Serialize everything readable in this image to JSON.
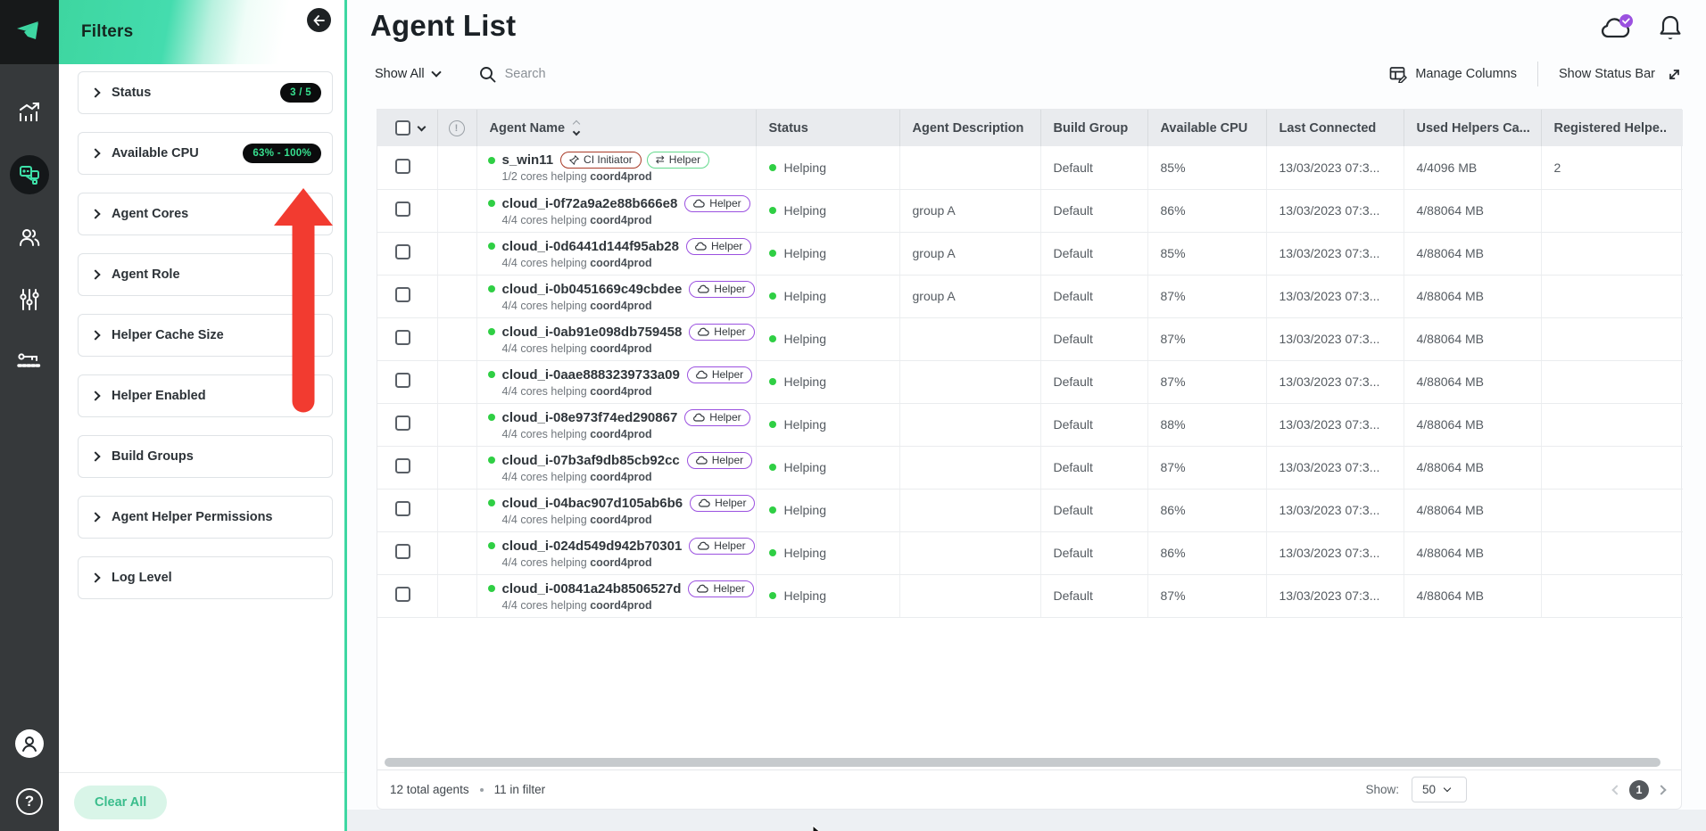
{
  "colors": {
    "accent_green": "#3ed7a2",
    "pill_text_green": "#37e08f",
    "status_dot_green": "#2fcf44",
    "helper_purple": "#9b51e0",
    "ci_badge_red": "#a93b28",
    "helper_badge_green": "#63d98c",
    "annotation_red": "#f23b30"
  },
  "icons": {
    "swap-icon": "⇄",
    "cloud-icon": "☁",
    "back-arrow-icon": "←",
    "help-icon": "?",
    "alert-icon": "!"
  },
  "sidebar": {
    "nav_items": [
      {
        "name": "analytics",
        "active": false
      },
      {
        "name": "agents",
        "active": true
      },
      {
        "name": "users",
        "active": false
      },
      {
        "name": "settings-controls",
        "active": false
      },
      {
        "name": "access-keys",
        "active": false
      }
    ]
  },
  "filters": {
    "title": "Filters",
    "items": [
      {
        "label": "Status",
        "badge": "3 / 5"
      },
      {
        "label": "Available CPU",
        "badge": "63% - 100%"
      },
      {
        "label": "Agent Cores",
        "badge": ""
      },
      {
        "label": "Agent Role",
        "badge": ""
      },
      {
        "label": "Helper Cache Size",
        "badge": ""
      },
      {
        "label": "Helper Enabled",
        "badge": ""
      },
      {
        "label": "Build Groups",
        "badge": ""
      },
      {
        "label": "Agent Helper Permissions",
        "badge": ""
      },
      {
        "label": "Log Level",
        "badge": ""
      }
    ],
    "clear_all_label": "Clear All"
  },
  "header": {
    "title": "Agent List"
  },
  "toolbar": {
    "show_all_label": "Show All",
    "search_placeholder": "Search",
    "manage_columns_label": "Manage Columns",
    "show_status_bar_label": "Show Status Bar"
  },
  "table": {
    "columns": [
      "Agent Name",
      "Status",
      "Agent Description",
      "Build Group",
      "Available CPU",
      "Last Connected",
      "Used Helpers Ca...",
      "Registered Helpe.."
    ],
    "rows": [
      {
        "name": "s_win11",
        "badges": [
          {
            "label": "CI Initiator",
            "type": "ci"
          },
          {
            "label": "Helper",
            "type": "helper-green"
          }
        ],
        "cores": "1/2 cores helping",
        "coordinator": "coord4prod",
        "status": "Helping",
        "description": "",
        "build_group": "Default",
        "available_cpu": "85%",
        "last_connected": "13/03/2023 07:3...",
        "used_helpers": "4/4096 MB",
        "registered_helpers": "2"
      },
      {
        "name": "cloud_i-0f72a9a2e88b666e8",
        "badges": [
          {
            "label": "Helper",
            "type": "helper-cloud"
          }
        ],
        "cores": "4/4 cores helping",
        "coordinator": "coord4prod",
        "status": "Helping",
        "description": "group A",
        "build_group": "Default",
        "available_cpu": "86%",
        "last_connected": "13/03/2023 07:3...",
        "used_helpers": "4/88064 MB",
        "registered_helpers": ""
      },
      {
        "name": "cloud_i-0d6441d144f95ab28",
        "badges": [
          {
            "label": "Helper",
            "type": "helper-cloud"
          }
        ],
        "cores": "4/4 cores helping",
        "coordinator": "coord4prod",
        "status": "Helping",
        "description": "group A",
        "build_group": "Default",
        "available_cpu": "85%",
        "last_connected": "13/03/2023 07:3...",
        "used_helpers": "4/88064 MB",
        "registered_helpers": ""
      },
      {
        "name": "cloud_i-0b0451669c49cbdee",
        "badges": [
          {
            "label": "Helper",
            "type": "helper-cloud"
          }
        ],
        "cores": "4/4 cores helping",
        "coordinator": "coord4prod",
        "status": "Helping",
        "description": "group A",
        "build_group": "Default",
        "available_cpu": "87%",
        "last_connected": "13/03/2023 07:3...",
        "used_helpers": "4/88064 MB",
        "registered_helpers": ""
      },
      {
        "name": "cloud_i-0ab91e098db759458",
        "badges": [
          {
            "label": "Helper",
            "type": "helper-cloud"
          }
        ],
        "cores": "4/4 cores helping",
        "coordinator": "coord4prod",
        "status": "Helping",
        "description": "",
        "build_group": "Default",
        "available_cpu": "87%",
        "last_connected": "13/03/2023 07:3...",
        "used_helpers": "4/88064 MB",
        "registered_helpers": ""
      },
      {
        "name": "cloud_i-0aae8883239733a09",
        "badges": [
          {
            "label": "Helper",
            "type": "helper-cloud"
          }
        ],
        "cores": "4/4 cores helping",
        "coordinator": "coord4prod",
        "status": "Helping",
        "description": "",
        "build_group": "Default",
        "available_cpu": "87%",
        "last_connected": "13/03/2023 07:3...",
        "used_helpers": "4/88064 MB",
        "registered_helpers": ""
      },
      {
        "name": "cloud_i-08e973f74ed290867",
        "badges": [
          {
            "label": "Helper",
            "type": "helper-cloud"
          }
        ],
        "cores": "4/4 cores helping",
        "coordinator": "coord4prod",
        "status": "Helping",
        "description": "",
        "build_group": "Default",
        "available_cpu": "88%",
        "last_connected": "13/03/2023 07:3...",
        "used_helpers": "4/88064 MB",
        "registered_helpers": ""
      },
      {
        "name": "cloud_i-07b3af9db85cb92cc",
        "badges": [
          {
            "label": "Helper",
            "type": "helper-cloud"
          }
        ],
        "cores": "4/4 cores helping",
        "coordinator": "coord4prod",
        "status": "Helping",
        "description": "",
        "build_group": "Default",
        "available_cpu": "87%",
        "last_connected": "13/03/2023 07:3...",
        "used_helpers": "4/88064 MB",
        "registered_helpers": ""
      },
      {
        "name": "cloud_i-04bac907d105ab6b6",
        "badges": [
          {
            "label": "Helper",
            "type": "helper-cloud"
          }
        ],
        "cores": "4/4 cores helping",
        "coordinator": "coord4prod",
        "status": "Helping",
        "description": "",
        "build_group": "Default",
        "available_cpu": "86%",
        "last_connected": "13/03/2023 07:3...",
        "used_helpers": "4/88064 MB",
        "registered_helpers": ""
      },
      {
        "name": "cloud_i-024d549d942b70301",
        "badges": [
          {
            "label": "Helper",
            "type": "helper-cloud"
          }
        ],
        "cores": "4/4 cores helping",
        "coordinator": "coord4prod",
        "status": "Helping",
        "description": "",
        "build_group": "Default",
        "available_cpu": "86%",
        "last_connected": "13/03/2023 07:3...",
        "used_helpers": "4/88064 MB",
        "registered_helpers": ""
      },
      {
        "name": "cloud_i-00841a24b8506527d",
        "badges": [
          {
            "label": "Helper",
            "type": "helper-cloud"
          }
        ],
        "cores": "4/4 cores helping",
        "coordinator": "coord4prod",
        "status": "Helping",
        "description": "",
        "build_group": "Default",
        "available_cpu": "87%",
        "last_connected": "13/03/2023 07:3...",
        "used_helpers": "4/88064 MB",
        "registered_helpers": ""
      }
    ]
  },
  "footer": {
    "total": "12 total agents",
    "in_filter": "11 in filter",
    "show_label": "Show:",
    "page_size": "50",
    "page": "1"
  }
}
